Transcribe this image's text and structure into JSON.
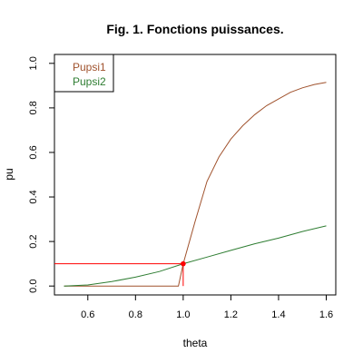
{
  "chart_data": {
    "type": "line",
    "title": "Fig. 1. Fonctions puissances.",
    "xlabel": "theta",
    "ylabel": "pu",
    "xlim": [
      0.46,
      1.64
    ],
    "ylim": [
      -0.04,
      1.04
    ],
    "xticks": [
      0.6,
      0.8,
      1.0,
      1.2,
      1.4,
      1.6
    ],
    "xtick_labels": [
      "0.6",
      "0.8",
      "1.0",
      "1.2",
      "1.4",
      "1.6"
    ],
    "yticks": [
      0.0,
      0.2,
      0.4,
      0.6,
      0.8,
      1.0
    ],
    "ytick_labels": [
      "0.0",
      "0.2",
      "0.4",
      "0.6",
      "0.8",
      "1.0"
    ],
    "legend_position": "top-left",
    "grid": false,
    "series": [
      {
        "name": "Pupsi1",
        "color": "#a0522d",
        "x": [
          0.5,
          0.6,
          0.7,
          0.8,
          0.9,
          0.98,
          1.0,
          1.05,
          1.1,
          1.15,
          1.2,
          1.25,
          1.3,
          1.35,
          1.4,
          1.45,
          1.5,
          1.55,
          1.6
        ],
        "y": [
          0.0,
          0.0,
          0.0,
          0.0,
          0.0,
          0.0,
          0.1,
          0.29,
          0.47,
          0.58,
          0.66,
          0.72,
          0.77,
          0.81,
          0.84,
          0.87,
          0.89,
          0.905,
          0.915
        ]
      },
      {
        "name": "Pupsi2",
        "color": "#2e7d32",
        "x": [
          0.5,
          0.6,
          0.7,
          0.8,
          0.9,
          1.0,
          1.1,
          1.2,
          1.3,
          1.4,
          1.5,
          1.6
        ],
        "y": [
          0.0,
          0.005,
          0.02,
          0.04,
          0.065,
          0.1,
          0.13,
          0.16,
          0.19,
          0.215,
          0.245,
          0.27
        ]
      }
    ],
    "reference_lines": {
      "color": "#ff0000",
      "horizontal_y": 0.1,
      "horizontal_x_range": [
        0.46,
        1.0
      ],
      "vertical_x": 1.0,
      "vertical_y_range": [
        0.0,
        0.1
      ],
      "marker": {
        "x": 1.0,
        "y": 0.1
      }
    }
  }
}
